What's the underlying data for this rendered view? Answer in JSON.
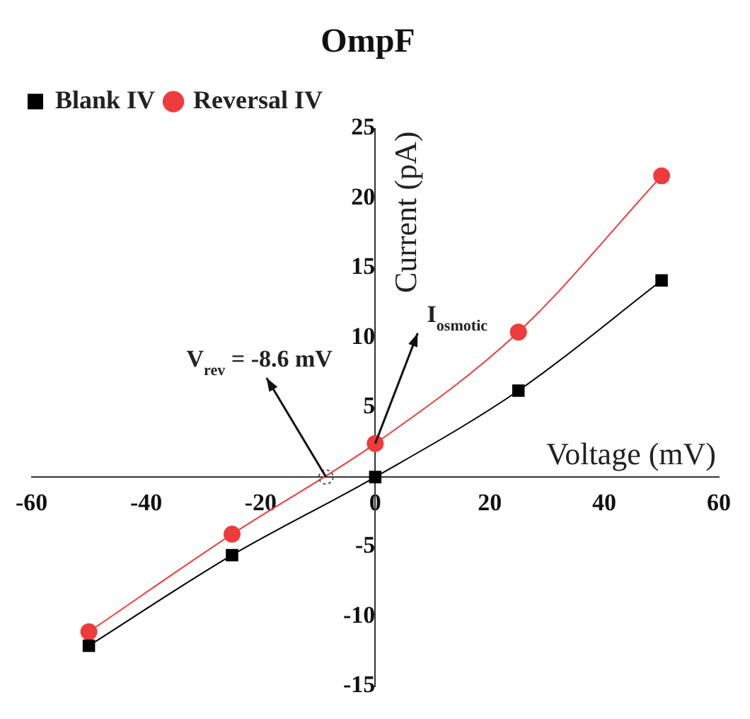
{
  "chart_data": {
    "type": "line",
    "title": "OmpF",
    "xlabel": "Voltage (mV)",
    "ylabel": "Current (pA)",
    "x": [
      -50,
      -25,
      0,
      25,
      50
    ],
    "series": [
      {
        "name": "Blank IV",
        "color": "#000000",
        "marker": "square",
        "values": [
          -12.1,
          -5.6,
          0,
          6.2,
          14.1
        ]
      },
      {
        "name": "Reversal IV",
        "color": "#ee3b3b",
        "marker": "circle",
        "values": [
          -11.1,
          -4.1,
          2.4,
          10.4,
          21.6
        ]
      }
    ],
    "xlim": [
      -60,
      60
    ],
    "xticks": [
      -60,
      -40,
      -20,
      0,
      20,
      40,
      60
    ],
    "ylim": [
      -15,
      25
    ],
    "yticks": [
      -15,
      -10,
      -5,
      {
        "value": 0,
        "label": null
      },
      5,
      10,
      15,
      20,
      25
    ],
    "annotations": [
      {
        "text": "V$_{rev}$ = -8.6 mV",
        "x": -8.6,
        "y": 0
      },
      {
        "text": "I$_{osmotic}$",
        "x": 0,
        "y": 2.4
      }
    ],
    "legend": "top left",
    "grid": false,
    "line_style": "solid"
  }
}
